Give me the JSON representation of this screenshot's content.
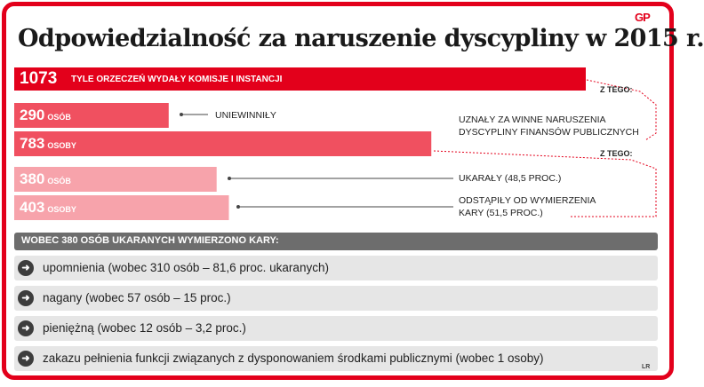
{
  "logo": "GP",
  "title": "Odpowiedzialność za naruszenie dyscypliny w 2015 r.",
  "chart_data": {
    "type": "bar",
    "orientation": "horizontal",
    "bars": [
      {
        "value": 1073,
        "value_text": "1073",
        "unit": "",
        "label": "TYLE ORZECZEŃ WYDAŁY KOMISJE I INSTANCJI",
        "color": "#e3001b"
      },
      {
        "value": 290,
        "value_text": "290",
        "unit": "osób",
        "label": "UNIEWINNIŁY",
        "color": "#f05060"
      },
      {
        "value": 783,
        "value_text": "783",
        "unit": "osoby",
        "label": "UZNAŁY ZA WINNE NARUSZENIA DYSCYPLINY FINANSÓW PUBLICZNYCH",
        "color": "#f05060"
      },
      {
        "value": 380,
        "value_text": "380",
        "unit": "osób",
        "label": "UKARAŁY (48,5 PROC.)",
        "color": "#f7a3ab"
      },
      {
        "value": 403,
        "value_text": "403",
        "unit": "osoby",
        "label": "ODSTĄPIŁY OD WYMIERZENIA KARY (51,5 PROC.)",
        "color": "#f7a3ab"
      }
    ],
    "xlim": [
      0,
      1073
    ]
  },
  "labels": {
    "uniewinnily": "UNIEWINNIŁY",
    "uznaly_1": "UZNAŁY ZA WINNE NARUSZENIA",
    "uznaly_2": "DYSCYPLINY FINANSÓW PUBLICZNYCH",
    "ukaraly": "UKARAŁY (48,5 PROC.)",
    "odstapily_1": "ODSTĄPIŁY OD WYMIERZENIA",
    "odstapily_2": "KARY (51,5 PROC.)",
    "z_tego_1": "Z TEGO:",
    "z_tego_2": "Z TEGO:"
  },
  "penalties": {
    "header": "WOBEC 380 OSÓB UKARANYCH WYMIERZONO KARY:",
    "items": [
      "upomnienia (wobec 310 osób – 81,6 proc. ukaranych)",
      "nagany (wobec 57 osób – 15 proc.)",
      "pieniężną (wobec 12 osób – 3,2 proc.)",
      "zakazu pełnienia funkcji związanych z dysponowaniem środkami publicznymi (wobec 1 osoby)"
    ]
  },
  "credit": "LR"
}
